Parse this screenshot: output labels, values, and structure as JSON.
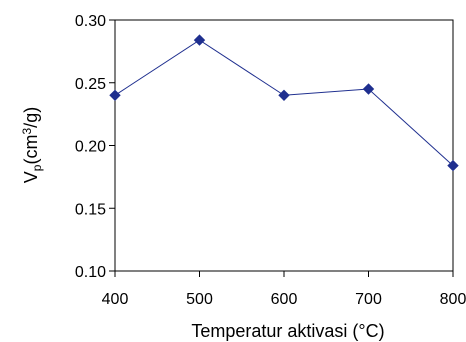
{
  "chart_data": {
    "type": "line",
    "xlabel": "Temperatur aktivasi (°C)",
    "ylabel_main": "V",
    "ylabel_sub": "p",
    "ylabel_unit_open": "(cm",
    "ylabel_unit_sup": "3",
    "ylabel_unit_close": "/g)",
    "xlim": [
      400,
      800
    ],
    "ylim": [
      0.1,
      0.3
    ],
    "x_ticks": [
      400,
      500,
      600,
      700,
      800
    ],
    "x_tick_labels": [
      "400",
      "500",
      "600",
      "700",
      "800"
    ],
    "y_ticks": [
      0.1,
      0.15,
      0.2,
      0.25,
      0.3
    ],
    "y_tick_labels": [
      "0.10",
      "0.15",
      "0.20",
      "0.25",
      "0.30"
    ],
    "grid": false,
    "legend": "none",
    "series": [
      {
        "x": [
          400,
          500,
          600,
          700,
          800
        ],
        "y": [
          0.24,
          0.284,
          0.24,
          0.245,
          0.184
        ],
        "color": "#1f2f8f",
        "marker": "diamond"
      }
    ]
  }
}
